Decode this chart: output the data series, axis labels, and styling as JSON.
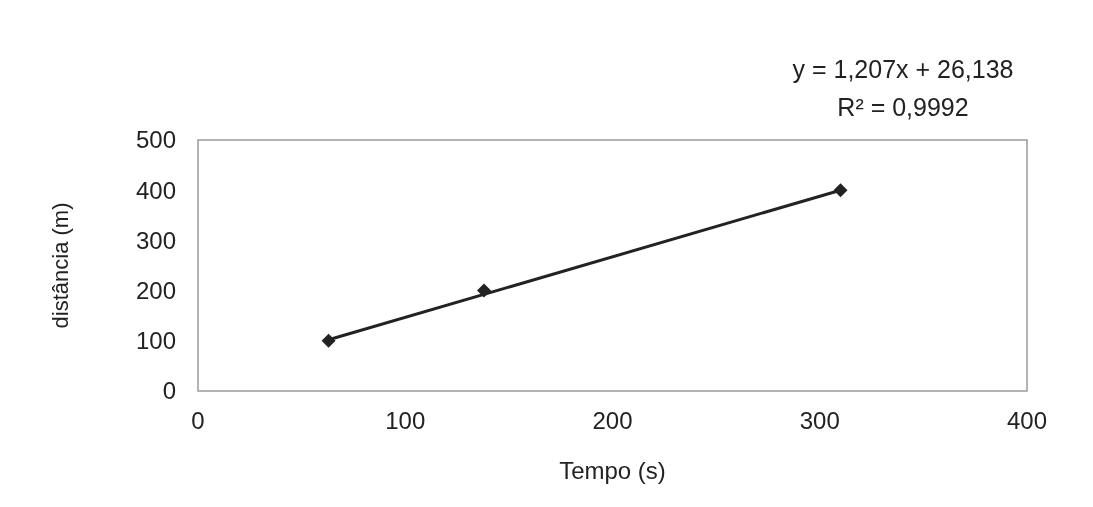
{
  "chart_data": {
    "type": "scatter",
    "xlabel": "Tempo (s)",
    "ylabel": "distância (m)",
    "annotations": [
      "y = 1,207x + 26,138",
      "R² = 0,9992"
    ],
    "series": [
      {
        "color": "#222222",
        "marker": "diamond",
        "x": [
          63,
          138,
          310
        ],
        "values": [
          100,
          200,
          400
        ]
      },
      {
        "type": "line",
        "color": "#222222",
        "marker": "none",
        "line_style": "solid",
        "x": [
          63,
          310
        ],
        "values": [
          102,
          400
        ]
      }
    ],
    "xlim": [
      0,
      400
    ],
    "xticks": [
      0,
      100,
      200,
      300,
      400
    ],
    "ylim": [
      0,
      500
    ],
    "yticks": [
      0,
      100,
      200,
      300,
      400,
      500
    ],
    "grid": false
  }
}
